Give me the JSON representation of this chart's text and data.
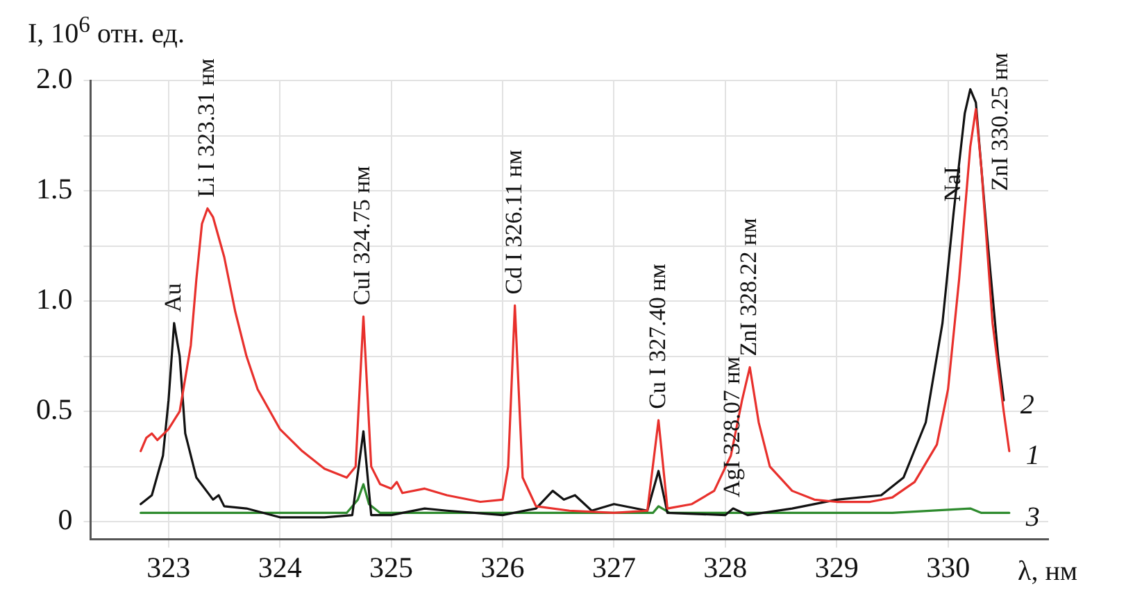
{
  "chart_data": {
    "type": "line",
    "ylabel": "I, 10$^{6}$ отн. ед.",
    "xlabel": "λ, нм",
    "xlim": [
      322.3,
      330.9
    ],
    "ylim": [
      -0.08,
      2.0
    ],
    "xticks": [
      323,
      324,
      325,
      326,
      327,
      328,
      329,
      330
    ],
    "yticks": [
      0,
      {
        "value": 0.25,
        "label": null
      },
      0.5,
      {
        "value": 0.75,
        "label": null
      },
      {
        "value": 1,
        "label": "1.0"
      },
      {
        "value": 1.25,
        "label": null
      },
      1.5,
      {
        "value": 1.75,
        "label": null
      },
      {
        "value": 2,
        "label": "2.0"
      }
    ],
    "grid": true,
    "legend": false,
    "marker": "none",
    "line_style": "solid",
    "series": [
      {
        "name": "1",
        "color": "#e8302c",
        "x": [
          322.75,
          322.8,
          322.85,
          322.9,
          323.0,
          323.1,
          323.2,
          323.25,
          323.3,
          323.35,
          323.4,
          323.5,
          323.6,
          323.7,
          323.8,
          324.0,
          324.2,
          324.4,
          324.6,
          324.68,
          324.75,
          324.82,
          324.9,
          325.0,
          325.05,
          325.1,
          325.3,
          325.5,
          325.8,
          326.0,
          326.05,
          326.11,
          326.18,
          326.3,
          326.6,
          327.0,
          327.3,
          327.4,
          327.48,
          327.7,
          327.9,
          328.05,
          328.15,
          328.22,
          328.3,
          328.4,
          328.6,
          328.8,
          329.0,
          329.3,
          329.5,
          329.7,
          329.9,
          330.0,
          330.1,
          330.2,
          330.25,
          330.3,
          330.4,
          330.5,
          330.55
        ],
        "values": [
          0.32,
          0.38,
          0.4,
          0.37,
          0.42,
          0.5,
          0.8,
          1.1,
          1.35,
          1.42,
          1.38,
          1.2,
          0.95,
          0.75,
          0.6,
          0.42,
          0.32,
          0.24,
          0.2,
          0.25,
          0.93,
          0.25,
          0.17,
          0.15,
          0.18,
          0.13,
          0.15,
          0.12,
          0.09,
          0.1,
          0.25,
          0.98,
          0.2,
          0.07,
          0.05,
          0.04,
          0.05,
          0.46,
          0.06,
          0.08,
          0.14,
          0.3,
          0.55,
          0.7,
          0.45,
          0.25,
          0.14,
          0.1,
          0.09,
          0.09,
          0.11,
          0.18,
          0.35,
          0.6,
          1.1,
          1.7,
          1.87,
          1.6,
          0.9,
          0.5,
          0.32
        ]
      },
      {
        "name": "2",
        "color": "#111111",
        "x": [
          322.75,
          322.85,
          322.95,
          323.0,
          323.05,
          323.1,
          323.15,
          323.25,
          323.4,
          323.45,
          323.5,
          323.7,
          324.0,
          324.4,
          324.65,
          324.75,
          324.82,
          325.0,
          325.3,
          325.5,
          326.0,
          326.3,
          326.45,
          326.55,
          326.65,
          326.8,
          327.0,
          327.3,
          327.4,
          327.48,
          328.0,
          328.07,
          328.2,
          328.6,
          329.0,
          329.4,
          329.6,
          329.8,
          329.95,
          330.05,
          330.15,
          330.2,
          330.25,
          330.35,
          330.45,
          330.5
        ],
        "values": [
          0.08,
          0.12,
          0.3,
          0.55,
          0.9,
          0.75,
          0.4,
          0.2,
          0.1,
          0.12,
          0.07,
          0.06,
          0.02,
          0.02,
          0.03,
          0.41,
          0.03,
          0.03,
          0.06,
          0.05,
          0.03,
          0.06,
          0.14,
          0.1,
          0.12,
          0.05,
          0.08,
          0.05,
          0.23,
          0.04,
          0.03,
          0.06,
          0.03,
          0.06,
          0.1,
          0.12,
          0.2,
          0.45,
          0.9,
          1.4,
          1.85,
          1.96,
          1.9,
          1.3,
          0.75,
          0.55
        ]
      },
      {
        "name": "3",
        "color": "#2e8b2e",
        "x": [
          322.75,
          323.5,
          324.6,
          324.7,
          324.75,
          324.8,
          324.9,
          326.1,
          327.35,
          327.4,
          327.5,
          328.5,
          329.5,
          330.2,
          330.3,
          330.55
        ],
        "values": [
          0.04,
          0.04,
          0.04,
          0.1,
          0.17,
          0.08,
          0.04,
          0.04,
          0.04,
          0.07,
          0.04,
          0.04,
          0.04,
          0.06,
          0.04,
          0.04
        ]
      }
    ],
    "annotations": [
      {
        "text": "Au",
        "x": 323.05,
        "y": 0.9
      },
      {
        "text": "Li I 323.31 нм",
        "x": 323.35,
        "y": 1.42
      },
      {
        "text": "CuI 324.75 нм",
        "x": 324.75,
        "y": 0.93
      },
      {
        "text": "Cd I 326.11 нм",
        "x": 326.11,
        "y": 0.98
      },
      {
        "text": "Cu I 327.40 нм",
        "x": 327.4,
        "y": 0.46
      },
      {
        "text": "AgI 328.07 нм",
        "x": 328.07,
        "y": 0.06
      },
      {
        "text": "ZnI 328.22 нм",
        "x": 328.22,
        "y": 0.7
      },
      {
        "text": "NaI",
        "x": 330.05,
        "y": 1.4
      },
      {
        "text": "ZnI 330.25 нм",
        "x": 330.25,
        "y": 1.87
      }
    ]
  }
}
